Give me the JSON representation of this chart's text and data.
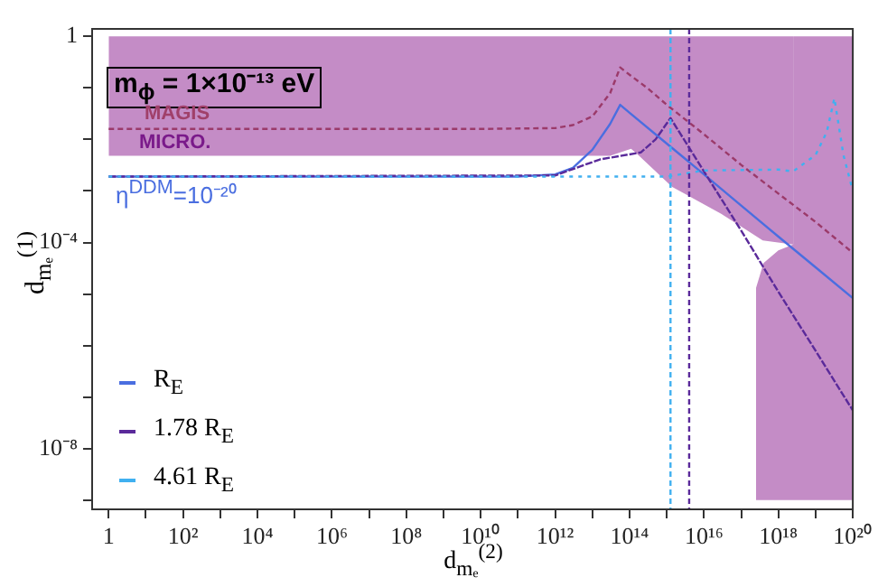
{
  "chart_data": {
    "type": "line",
    "xlabel": "d$_{mₑ}$$^{(2)}$",
    "ylabel": "d$_{mₑ}$$^{(1)}$",
    "log": "xy",
    "xlim": [
      0.36,
      1e+20
    ],
    "ylim": [
      6.6e-10,
      1.4
    ],
    "xticks": [
      1,
      {
        "value": 10,
        "label": null
      },
      {
        "value": 100,
        "label": "10²"
      },
      {
        "value": 1000.0,
        "label": null
      },
      {
        "value": 10000.0,
        "label": "10⁴"
      },
      {
        "value": 100000.0,
        "label": null
      },
      {
        "value": 1000000.0,
        "label": "10⁶"
      },
      {
        "value": 10000000.0,
        "label": null
      },
      {
        "value": 100000000.0,
        "label": "10⁸"
      },
      {
        "value": 1000000000.0,
        "label": null
      },
      {
        "value": 10000000000.0,
        "label": "10¹⁰"
      },
      {
        "value": 100000000000.0,
        "label": null
      },
      {
        "value": 1000000000000.0,
        "label": "10¹²"
      },
      {
        "value": 10000000000000.0,
        "label": null
      },
      {
        "value": 100000000000000.0,
        "label": "10¹⁴"
      },
      {
        "value": 1000000000000000.0,
        "label": null
      },
      {
        "value": 1e+16,
        "label": "10¹⁶"
      },
      {
        "value": 1e+17,
        "label": null
      },
      {
        "value": 1e+18,
        "label": "10¹⁸"
      },
      {
        "value": 1e+19,
        "label": null
      },
      {
        "value": 1e+20,
        "label": "10²⁰"
      }
    ],
    "yticks": [
      {
        "value": 1e-09,
        "label": null
      },
      {
        "value": 1e-08,
        "label": "10⁻⁸"
      },
      {
        "value": 1e-07,
        "label": null
      },
      {
        "value": 1e-06,
        "label": null
      },
      {
        "value": 1e-05,
        "label": null
      },
      {
        "value": 0.0001,
        "label": "10⁻⁴"
      },
      {
        "value": 0.001,
        "label": null
      },
      {
        "value": 0.01,
        "label": null
      },
      {
        "value": 0.1,
        "label": null
      },
      1
    ],
    "legend": "bottom left",
    "series": [
      {
        "type": "line",
        "color": "#c48cc6",
        "x": [
          1,
          30000000000000.0,
          110000000000000.0,
          160000000000000.0,
          1400000000000000.0,
          2.9e+16,
          3.8e+17,
          2.5e+18
        ],
        "values": [
          null,
          null,
          null,
          null,
          null,
          null,
          null,
          null
        ],
        "upper": [
          1,
          1,
          1,
          1,
          1,
          1,
          1,
          1
        ],
        "lower": [
          0.0048,
          0.0048,
          0.0066,
          0.0052,
          0.0012,
          0.00036,
          0.00011,
          9.1e-05
        ]
      },
      {
        "type": "line",
        "color": "#c48cc6",
        "x": [
          2.5e+17,
          4e+17,
          1e+18,
          2.5e+18,
          2.5e+18,
          1e+20
        ],
        "values": [
          null,
          null,
          null,
          null,
          null,
          null
        ],
        "upper": [
          1.3e-05,
          4e-05,
          7e-05,
          9.1e-05,
          1,
          1
        ],
        "lower": [
          1e-09,
          1e-09,
          1e-09,
          1e-09,
          1e-09,
          1e-09
        ]
      },
      {
        "type": "line",
        "color": "#9b3a6a",
        "line_style": "dashed",
        "x": [
          1,
          10000000000.0,
          1000000000000.0,
          3000000000000.0,
          10000000000000.0,
          30000000000000.0,
          56000000000000.0,
          100000000000000.0,
          300000000000000.0,
          1000000000000000.0,
          1e+16,
          1e+17,
          1e+18,
          1e+19,
          1e+20
        ],
        "values": [
          0.016,
          0.016,
          0.0166,
          0.019,
          0.028,
          0.079,
          0.25,
          0.18,
          0.1,
          0.047,
          0.0126,
          0.0032,
          0.00089,
          0.00025,
          6.3e-05
        ]
      },
      {
        "name": "R$_{E}$",
        "type": "line",
        "color": "#4a6ee0",
        "line_style": "solid",
        "x": [
          1,
          100000000000.0,
          1000000000000.0,
          3000000000000.0,
          10000000000000.0,
          30000000000000.0,
          56000000000000.0,
          100000000000000.0,
          1000000000000000.0,
          1e+16,
          1e+17,
          1e+18,
          1e+19,
          1e+20
        ],
        "values": [
          0.0019,
          0.0019,
          0.0021,
          0.0028,
          0.0063,
          0.02,
          0.047,
          0.033,
          0.0083,
          0.0021,
          0.00052,
          0.00013,
          3.3e-05,
          8.3e-06
        ]
      },
      {
        "name": "1.78 R$_{E}$",
        "type": "line",
        "color": "#5a2a9a",
        "line_style": "dashed",
        "x": [
          1,
          1000000000000.0,
          16000000000000.0,
          200000000000000.0,
          500000000000000.0,
          1260000000000000.0,
          1e+16,
          1e+17,
          1e+18,
          1e+19,
          1e+20
        ],
        "values": [
          0.0019,
          0.002,
          0.0041,
          0.0056,
          0.01,
          0.026,
          0.0024,
          0.00017,
          1.1e-05,
          7.9e-07,
          5.5e-08
        ]
      },
      {
        "name": "4.61 R$_{E}$",
        "type": "line",
        "color": "#40b0f0",
        "line_style": "dashed",
        "x": [
          1,
          1000000000000000.0,
          1e+16,
          1e+18,
          2.5e+18,
          1e+19,
          2e+19,
          3.2e+19,
          5.6e+19,
          1e+20
        ],
        "values": [
          0.0019,
          0.0019,
          0.0025,
          0.0026,
          0.0024,
          0.005,
          0.014,
          0.063,
          0.005,
          0.001
        ]
      }
    ],
    "ref_lines": [
      {
        "axis": "x",
        "value": 1260000000000000.0,
        "color": "#40b0f0",
        "line_style": "dashed"
      },
      {
        "axis": "x",
        "value": 4000000000000000.0,
        "color": "#5a2a9a",
        "line_style": "dashed"
      }
    ],
    "annotations": [
      "m$_{ϕ}$ = 1×10⁻¹³ eV",
      "MAGIS",
      "MICRO.",
      "η$^{DDM}$=10⁻²⁰"
    ]
  }
}
